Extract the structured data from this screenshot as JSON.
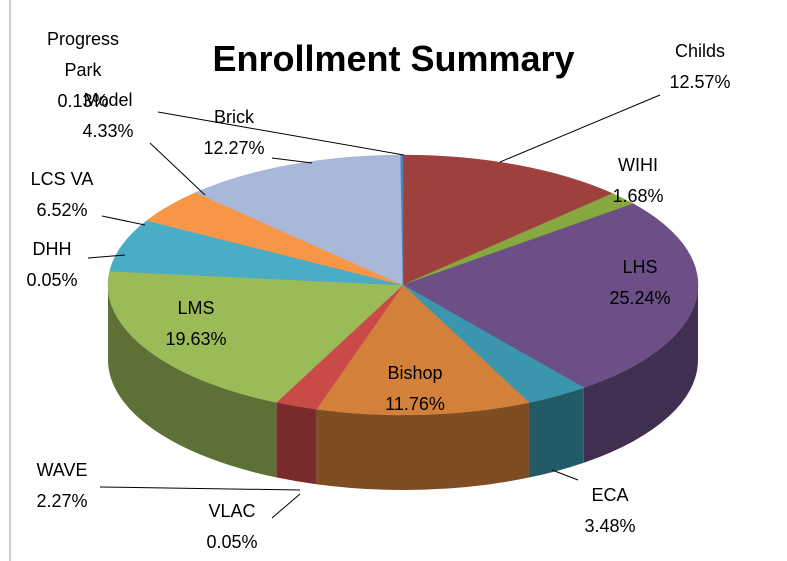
{
  "chart_data": {
    "type": "pie",
    "title": "Enrollment Summary",
    "categories": [
      "Childs",
      "WIHI",
      "LHS",
      "ECA",
      "Bishop",
      "VLAC",
      "WAVE",
      "LMS",
      "DHH",
      "LCS VA",
      "Model",
      "Brick",
      "Progress Park"
    ],
    "values": [
      12.57,
      1.68,
      25.24,
      3.48,
      11.76,
      0.05,
      2.27,
      19.63,
      0.05,
      6.52,
      4.33,
      12.27,
      0.13
    ],
    "value_labels": [
      "12.57%",
      "1.68%",
      "25.24%",
      "3.48%",
      "11.76%",
      "0.05%",
      "2.27%",
      "19.63%",
      "0.05%",
      "6.52%",
      "4.33%",
      "12.27%",
      "0.13%"
    ],
    "colors": [
      "#9e413e",
      "#86a83f",
      "#6b4f86",
      "#3b96ad",
      "#d3803b",
      "#c0504d",
      "#c94a47",
      "#9bbb59",
      "#4bacc6",
      "#4bacc6",
      "#f79646",
      "#a9b8d8",
      "#4f81bd"
    ]
  }
}
